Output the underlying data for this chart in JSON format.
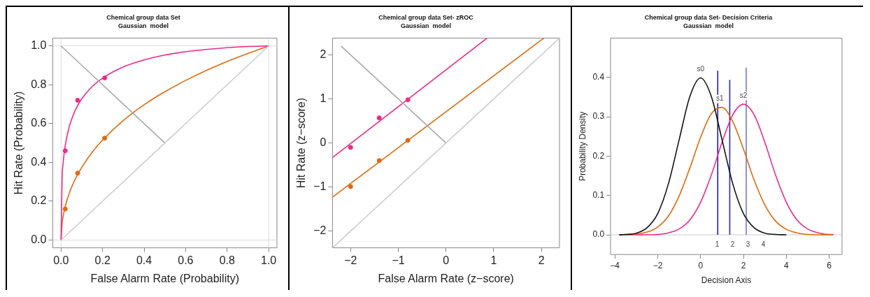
{
  "chart_data": [
    {
      "type": "line",
      "title": "Chemical group data Set",
      "subtitle": "Gaussian  model",
      "xlabel": "False Alarm Rate (Probability)",
      "ylabel": "Hit Rate (Probability)",
      "xlim": [
        -0.04,
        1.04
      ],
      "ylim": [
        -0.04,
        1.04
      ],
      "xticks": [
        {
          "value": 0,
          "label": "0.0"
        },
        {
          "value": 0.2,
          "label": "0.2"
        },
        {
          "value": 0.4,
          "label": "0.4"
        },
        {
          "value": 0.6,
          "label": "0.6"
        },
        {
          "value": 0.8,
          "label": "0.8"
        },
        {
          "value": 1,
          "label": "1.0"
        }
      ],
      "yticks": [
        {
          "value": 0,
          "label": "0.0"
        },
        {
          "value": 0.2,
          "label": "0.2"
        },
        {
          "value": 0.4,
          "label": "0.4"
        },
        {
          "value": 0.6,
          "label": "0.6"
        },
        {
          "value": 0.8,
          "label": "0.8"
        },
        {
          "value": 1,
          "label": "1.0"
        }
      ],
      "grid": false,
      "ref_lines": [
        {
          "axis": "x",
          "value": 0,
          "color": "#dddddd"
        },
        {
          "axis": "x",
          "value": 1,
          "color": "#dddddd"
        },
        {
          "axis": "y",
          "value": 0,
          "color": "#dddddd"
        },
        {
          "axis": "y",
          "value": 1,
          "color": "#dddddd"
        }
      ],
      "series": [
        {
          "type": "line",
          "marker": "none",
          "color": "#cccccc",
          "x": [
            0,
            1
          ],
          "values": [
            0,
            1
          ]
        },
        {
          "type": "line",
          "marker": "none",
          "color": "#aaaaaa",
          "x": [
            0,
            0.5
          ],
          "values": [
            1,
            0.5
          ]
        },
        {
          "type": "line",
          "marker": "none",
          "color": "#ee2a8c",
          "x": [
            0,
            0.005,
            0.01,
            0.02,
            0.04,
            0.06,
            0.08,
            0.1,
            0.15,
            0.2,
            0.3,
            0.4,
            0.5,
            0.6,
            0.7,
            0.8,
            0.9,
            1
          ],
          "values": [
            0,
            0.32,
            0.397,
            0.486,
            0.586,
            0.648,
            0.693,
            0.728,
            0.791,
            0.834,
            0.892,
            0.928,
            0.953,
            0.97,
            0.982,
            0.991,
            0.997,
            1
          ]
        },
        {
          "type": "line",
          "marker": "none",
          "color": "#e06a10",
          "x": [
            0,
            0.005,
            0.01,
            0.02,
            0.04,
            0.06,
            0.08,
            0.1,
            0.15,
            0.2,
            0.3,
            0.4,
            0.5,
            0.6,
            0.7,
            0.8,
            0.9,
            1
          ],
          "values": [
            0,
            0.086,
            0.122,
            0.173,
            0.243,
            0.295,
            0.338,
            0.375,
            0.453,
            0.515,
            0.616,
            0.697,
            0.764,
            0.822,
            0.874,
            0.92,
            0.961,
            1
          ]
        },
        {
          "type": "scatter",
          "marker": "circle",
          "color": "#ee2a8c",
          "x": [
            0.02,
            0.08,
            0.21
          ],
          "values": [
            0.46,
            0.72,
            0.835
          ]
        },
        {
          "type": "scatter",
          "marker": "circle",
          "color": "#e06a10",
          "x": [
            0.02,
            0.08,
            0.21
          ],
          "values": [
            0.16,
            0.345,
            0.525
          ]
        }
      ]
    },
    {
      "type": "line",
      "title": "Chemical group data Set- zROC",
      "subtitle": "Gaussian  model",
      "xlabel": "False Alarm Rate (z−score)",
      "ylabel": "Hit Rate (z−score)",
      "xlim": [
        -2.38,
        2.38
      ],
      "ylim": [
        -2.38,
        2.38
      ],
      "xticks": [
        {
          "value": -2,
          "label": "−2"
        },
        {
          "value": -1,
          "label": "−1"
        },
        0,
        1,
        2
      ],
      "yticks": [
        {
          "value": -2,
          "label": "−2"
        },
        {
          "value": -1,
          "label": "−1"
        },
        0,
        1,
        2
      ],
      "grid": false,
      "series": [
        {
          "type": "line",
          "marker": "none",
          "color": "#cccccc",
          "x": [
            -2.38,
            2.38
          ],
          "values": [
            -2.38,
            2.38
          ]
        },
        {
          "type": "line",
          "marker": "none",
          "color": "#aaaaaa",
          "x": [
            -2.2,
            0
          ],
          "values": [
            2.2,
            0
          ]
        },
        {
          "type": "line",
          "marker": "none",
          "color": "#ee2a8c",
          "x": [
            -2.38,
            0.86
          ],
          "values": [
            -0.33,
            2.38
          ]
        },
        {
          "type": "line",
          "marker": "none",
          "color": "#e06a10",
          "x": [
            -2.38,
            2.05
          ],
          "values": [
            -1.23,
            2.38
          ]
        },
        {
          "type": "scatter",
          "marker": "circle",
          "color": "#ee2a8c",
          "x": [
            -2,
            -1.4,
            -0.8
          ],
          "values": [
            -0.1,
            0.57,
            0.98
          ]
        },
        {
          "type": "scatter",
          "marker": "circle",
          "color": "#e06a10",
          "x": [
            -2,
            -1.4,
            -0.8
          ],
          "values": [
            -0.99,
            -0.4,
            0.06
          ]
        }
      ]
    },
    {
      "type": "line",
      "title": "Chemical group data Set- Decision Criteria",
      "subtitle": "Gaussian  model",
      "xlabel": "Decision Axis",
      "ylabel": "Probability Density",
      "xlim": [
        -4.2,
        6.6
      ],
      "ylim": [
        -0.05,
        0.5
      ],
      "xticks": [
        {
          "value": -4,
          "label": "−4"
        },
        {
          "value": -2,
          "label": "−2"
        },
        0,
        2,
        4,
        6
      ],
      "yticks": [
        {
          "value": 0,
          "label": "0.0"
        },
        {
          "value": 0.1,
          "label": "0.1"
        },
        {
          "value": 0.2,
          "label": "0.2"
        },
        {
          "value": 0.3,
          "label": "0.3"
        },
        {
          "value": 0.4,
          "label": "0.4"
        }
      ],
      "grid": false,
      "ref_lines": [
        {
          "axis": "y",
          "value": 0,
          "color": "#cccccc"
        }
      ],
      "annotations": [
        {
          "text": "s0",
          "x": 0,
          "y": 0.399
        },
        {
          "text": "s1",
          "x": 0.9,
          "y": 0.324
        },
        {
          "text": "s2",
          "x": 2,
          "y": 0.332
        },
        "1",
        "2",
        "3",
        "4"
      ],
      "series": [
        {
          "type": "line",
          "marker": "none",
          "color": "#111111",
          "x": [
            -3.8,
            -3.5,
            -3,
            -2.5,
            -2,
            -1.5,
            -1,
            -0.5,
            0,
            0.5,
            1,
            1.5,
            2,
            2.5,
            3,
            3.5,
            4
          ],
          "values": [
            0,
            0.001,
            0.004,
            0.018,
            0.054,
            0.13,
            0.242,
            0.352,
            0.399,
            0.352,
            0.242,
            0.13,
            0.054,
            0.018,
            0.004,
            0.001,
            0
          ]
        },
        {
          "type": "line",
          "marker": "none",
          "color": "#e06a10",
          "x": [
            -3.8,
            -3.5,
            -3,
            -2.5,
            -2,
            -1.5,
            -1,
            -0.5,
            0,
            0.5,
            1,
            1.5,
            2,
            2.5,
            3,
            3.5,
            4,
            4.5,
            5,
            5.5,
            6,
            6.2
          ],
          "values": [
            0,
            0.001,
            0.002,
            0.007,
            0.02,
            0.048,
            0.099,
            0.17,
            0.248,
            0.308,
            0.324,
            0.288,
            0.218,
            0.139,
            0.076,
            0.035,
            0.014,
            0.005,
            0.001,
            0,
            0,
            0
          ]
        },
        {
          "type": "line",
          "marker": "none",
          "color": "#ee2a8c",
          "x": [
            -3.8,
            -3.5,
            -3,
            -2.5,
            -2,
            -1.5,
            -1,
            -0.5,
            0,
            0.5,
            1,
            1.5,
            2,
            2.5,
            3,
            3.5,
            4,
            4.5,
            5,
            5.5,
            6,
            6.2
          ],
          "values": [
            0,
            0,
            0,
            0,
            0.001,
            0.005,
            0.015,
            0.038,
            0.083,
            0.152,
            0.235,
            0.305,
            0.332,
            0.305,
            0.235,
            0.152,
            0.083,
            0.038,
            0.015,
            0.005,
            0.001,
            0.001
          ]
        },
        {
          "type": "line",
          "marker": "none",
          "color": "#1a1a9a",
          "x": [
            0.8,
            0.8
          ],
          "values": [
            0,
            0.417
          ]
        },
        {
          "type": "line",
          "marker": "none",
          "color": "#2a2aa8",
          "x": [
            1.36,
            1.36
          ],
          "values": [
            0,
            0.394
          ]
        },
        {
          "type": "line",
          "marker": "none",
          "color": "#7777cc",
          "x": [
            2.13,
            2.13
          ],
          "values": [
            0,
            0.425
          ]
        }
      ]
    }
  ]
}
